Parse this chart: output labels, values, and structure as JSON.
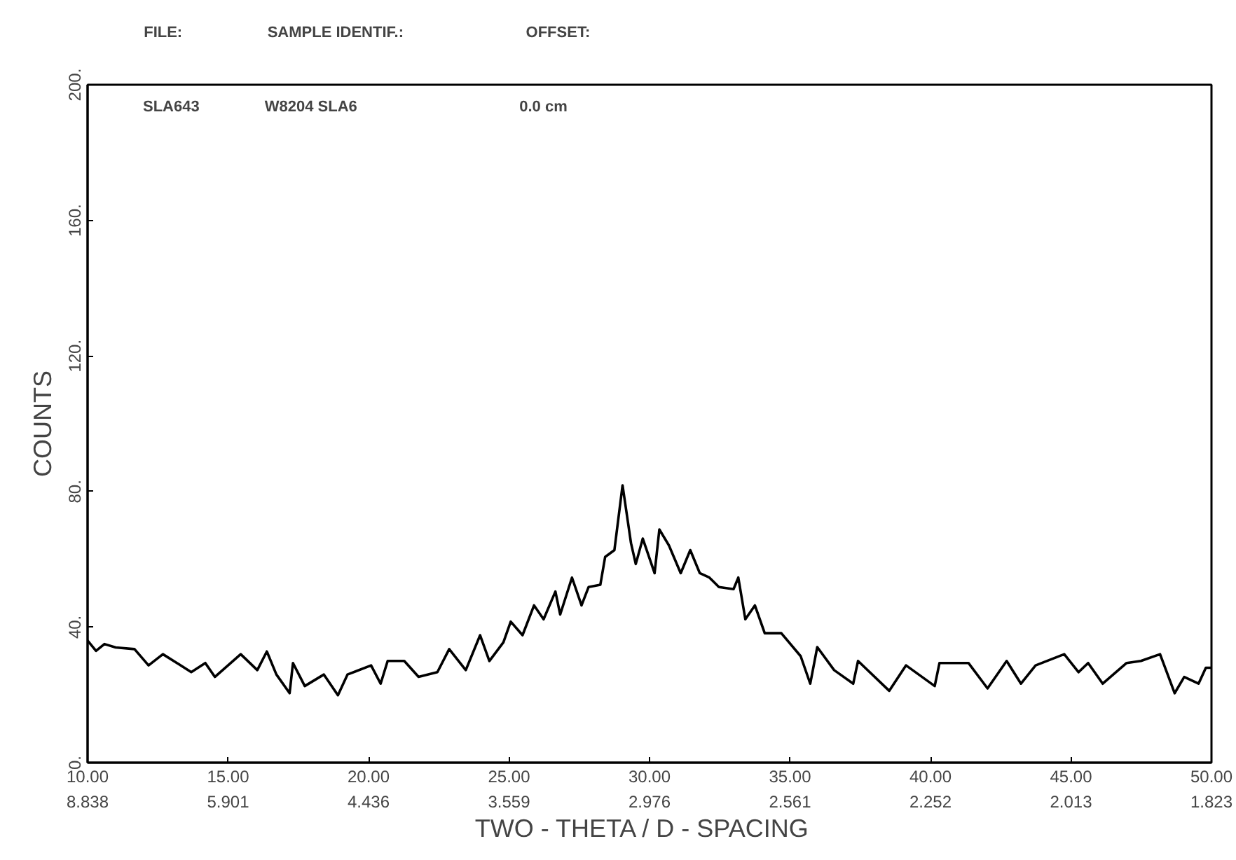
{
  "chart_data": {
    "type": "line",
    "xlabel": "TWO - THETA  /  D - SPACING",
    "ylabel": "COUNTS",
    "annotations": [
      "FILE:",
      "SAMPLE IDENTIF.:",
      "OFFSET:",
      "SLA643",
      "W8204 SLA6",
      "0.0 cm",
      "8.838",
      "5.901",
      "4.436",
      "3.559",
      "2.976",
      "2.561",
      "2.252",
      "2.013",
      "1.823"
    ],
    "xlim": [
      10,
      50
    ],
    "ylim": [
      0,
      200
    ],
    "xticks": [
      {
        "value": 10,
        "label": "10.00"
      },
      {
        "value": 15,
        "label": "15.00"
      },
      {
        "value": 20,
        "label": "20.00"
      },
      {
        "value": 25,
        "label": "25.00"
      },
      {
        "value": 30,
        "label": "30.00"
      },
      {
        "value": 35,
        "label": "35.00"
      },
      {
        "value": 40,
        "label": "40.00"
      },
      {
        "value": 45,
        "label": "45.00"
      },
      {
        "value": 50,
        "label": "50.00"
      }
    ],
    "yticks": [
      {
        "value": 0,
        "label": "0."
      },
      {
        "value": 40,
        "label": "40."
      },
      {
        "value": 80,
        "label": "80."
      },
      {
        "value": 120,
        "label": "120."
      },
      {
        "value": 160,
        "label": "160."
      },
      {
        "value": 200,
        "label": "200."
      }
    ],
    "grid": false,
    "marker": "none",
    "line_style": "solid",
    "series": [
      {
        "color": "#000000",
        "x": [
          10.0,
          10.3,
          10.6,
          11.0,
          11.67,
          12.17,
          12.68,
          13.18,
          13.69,
          14.19,
          14.53,
          15.45,
          16.04,
          16.38,
          16.72,
          17.19,
          17.31,
          17.73,
          18.41,
          18.91,
          19.25,
          20.09,
          20.43,
          20.68,
          21.27,
          21.78,
          22.45,
          22.87,
          23.46,
          23.97,
          24.3,
          24.8,
          25.06,
          25.48,
          25.89,
          26.23,
          26.65,
          26.82,
          27.24,
          27.58,
          27.83,
          28.25,
          28.42,
          28.75,
          29.04,
          29.34,
          29.51,
          29.76,
          30.18,
          30.35,
          30.69,
          31.11,
          31.45,
          31.79,
          32.13,
          32.47,
          32.99,
          33.16,
          33.41,
          33.75,
          34.1,
          34.69,
          35.38,
          35.72,
          35.97,
          36.57,
          37.25,
          37.42,
          38.53,
          39.13,
          40.15,
          40.32,
          41.35,
          42.03,
          42.71,
          43.22,
          43.74,
          44.76,
          45.27,
          45.61,
          46.13,
          46.98,
          47.49,
          48.17,
          48.69,
          49.03,
          49.54,
          49.8,
          50.0
        ],
        "values": [
          36,
          33,
          35,
          34,
          33.5,
          28.7,
          32,
          29.4,
          26.7,
          29.4,
          25.3,
          32,
          27.3,
          32.8,
          26,
          20.5,
          29.4,
          22.6,
          26,
          19.9,
          26,
          28.7,
          23.3,
          30,
          30,
          25.3,
          26.7,
          33.5,
          27.3,
          37.6,
          30,
          35.5,
          41.6,
          37.6,
          46.4,
          42.3,
          50.5,
          43.7,
          54.6,
          46.4,
          51.8,
          52.5,
          60.7,
          62.7,
          81.8,
          64.8,
          58.6,
          66.1,
          55.9,
          68.8,
          64.1,
          55.9,
          62.7,
          55.9,
          54.6,
          51.8,
          51.2,
          54.6,
          42.3,
          46.4,
          38.2,
          38.2,
          31.4,
          23.3,
          34.1,
          27.3,
          23.3,
          30,
          21.2,
          28.7,
          22.6,
          29.4,
          29.4,
          21.9,
          30,
          23.3,
          28.7,
          32,
          26.7,
          29.4,
          23.3,
          29.4,
          30,
          32,
          20.5,
          25.3,
          23.3,
          28,
          28
        ]
      }
    ]
  }
}
